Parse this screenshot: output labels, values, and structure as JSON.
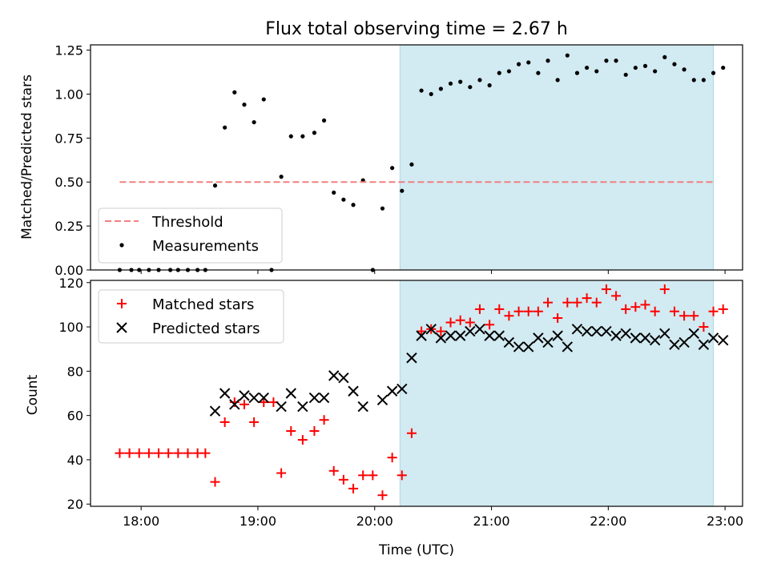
{
  "chart_data": [
    {
      "type": "scatter",
      "title": "Flux total observing time = 2.67 h",
      "ylabel": "Matched/Predicted stars",
      "xlim": [
        "17:34",
        "23:09"
      ],
      "ylim": [
        0,
        1.28
      ],
      "yticks": [
        "0.00",
        "0.25",
        "0.50",
        "0.75",
        "1.00",
        "1.25"
      ],
      "shaded_region": {
        "x_start": "20:13",
        "x_end": "22:54",
        "color": "#add8e6"
      },
      "threshold": {
        "name": "Threshold",
        "value": 0.5,
        "x_start": "17:49",
        "x_end": "22:54",
        "color": "#f08080"
      },
      "legend": {
        "placement": "lower-left",
        "entries": [
          "Threshold",
          "Measurements"
        ]
      },
      "series": [
        {
          "name": "Measurements",
          "color": "#000000",
          "points": [
            [
              "17:49",
              0.0
            ],
            [
              "17:55",
              0.0
            ],
            [
              "17:59",
              0.0
            ],
            [
              "18:04",
              0.0
            ],
            [
              "18:09",
              0.0
            ],
            [
              "18:15",
              0.0
            ],
            [
              "18:19",
              0.0
            ],
            [
              "18:24",
              0.0
            ],
            [
              "18:29",
              0.0
            ],
            [
              "18:33",
              0.0
            ],
            [
              "18:38",
              0.48
            ],
            [
              "18:43",
              0.81
            ],
            [
              "18:48",
              1.01
            ],
            [
              "18:53",
              0.94
            ],
            [
              "18:58",
              0.84
            ],
            [
              "19:03",
              0.97
            ],
            [
              "19:07",
              0.0
            ],
            [
              "19:12",
              0.53
            ],
            [
              "19:17",
              0.76
            ],
            [
              "19:23",
              0.76
            ],
            [
              "19:29",
              0.78
            ],
            [
              "19:34",
              0.85
            ],
            [
              "19:39",
              0.44
            ],
            [
              "19:44",
              0.4
            ],
            [
              "19:49",
              0.37
            ],
            [
              "19:54",
              0.51
            ],
            [
              "19:59",
              0.0
            ],
            [
              "20:04",
              0.35
            ],
            [
              "20:09",
              0.58
            ],
            [
              "20:14",
              0.45
            ],
            [
              "20:19",
              0.6
            ],
            [
              "20:24",
              1.02
            ],
            [
              "20:29",
              1.0
            ],
            [
              "20:34",
              1.03
            ],
            [
              "20:39",
              1.06
            ],
            [
              "20:44",
              1.07
            ],
            [
              "20:49",
              1.04
            ],
            [
              "20:54",
              1.08
            ],
            [
              "20:59",
              1.05
            ],
            [
              "21:04",
              1.12
            ],
            [
              "21:09",
              1.13
            ],
            [
              "21:14",
              1.17
            ],
            [
              "21:19",
              1.18
            ],
            [
              "21:24",
              1.12
            ],
            [
              "21:29",
              1.19
            ],
            [
              "21:34",
              1.08
            ],
            [
              "21:39",
              1.22
            ],
            [
              "21:44",
              1.12
            ],
            [
              "21:49",
              1.15
            ],
            [
              "21:54",
              1.13
            ],
            [
              "21:59",
              1.19
            ],
            [
              "22:04",
              1.19
            ],
            [
              "22:09",
              1.11
            ],
            [
              "22:14",
              1.15
            ],
            [
              "22:19",
              1.16
            ],
            [
              "22:24",
              1.13
            ],
            [
              "22:29",
              1.21
            ],
            [
              "22:34",
              1.17
            ],
            [
              "22:39",
              1.14
            ],
            [
              "22:44",
              1.08
            ],
            [
              "22:49",
              1.08
            ],
            [
              "22:54",
              1.12
            ],
            [
              "22:59",
              1.15
            ]
          ]
        }
      ]
    },
    {
      "type": "scatter",
      "xlabel": "Time (UTC)",
      "ylabel": "Count",
      "xlim": [
        "17:34",
        "23:09"
      ],
      "ylim": [
        19,
        121
      ],
      "xticks": [
        "18:00",
        "19:00",
        "20:00",
        "21:00",
        "22:00",
        "23:00"
      ],
      "yticks": [
        "20",
        "40",
        "60",
        "80",
        "100",
        "120"
      ],
      "shaded_region": {
        "x_start": "20:13",
        "x_end": "22:54",
        "color": "#add8e6"
      },
      "legend": {
        "placement": "upper-left",
        "entries": [
          "Matched stars",
          "Predicted stars"
        ]
      },
      "series": [
        {
          "name": "Matched stars",
          "marker": "+",
          "color": "#ff0000",
          "points": [
            [
              "17:49",
              43
            ],
            [
              "17:54",
              43
            ],
            [
              "17:59",
              43
            ],
            [
              "18:04",
              43
            ],
            [
              "18:09",
              43
            ],
            [
              "18:14",
              43
            ],
            [
              "18:19",
              43
            ],
            [
              "18:24",
              43
            ],
            [
              "18:29",
              43
            ],
            [
              "18:33",
              43
            ],
            [
              "18:38",
              30
            ],
            [
              "18:43",
              57
            ],
            [
              "18:48",
              66
            ],
            [
              "18:53",
              65
            ],
            [
              "18:58",
              57
            ],
            [
              "19:03",
              66
            ],
            [
              "19:08",
              66
            ],
            [
              "19:12",
              34
            ],
            [
              "19:17",
              53
            ],
            [
              "19:23",
              49
            ],
            [
              "19:29",
              53
            ],
            [
              "19:34",
              58
            ],
            [
              "19:39",
              35
            ],
            [
              "19:44",
              31
            ],
            [
              "19:49",
              27
            ],
            [
              "19:54",
              33
            ],
            [
              "19:59",
              33
            ],
            [
              "20:04",
              24
            ],
            [
              "20:09",
              41
            ],
            [
              "20:14",
              33
            ],
            [
              "20:19",
              52
            ],
            [
              "20:24",
              98
            ],
            [
              "20:29",
              99
            ],
            [
              "20:34",
              98
            ],
            [
              "20:39",
              102
            ],
            [
              "20:44",
              103
            ],
            [
              "20:49",
              102
            ],
            [
              "20:54",
              108
            ],
            [
              "20:59",
              101
            ],
            [
              "21:04",
              108
            ],
            [
              "21:09",
              105
            ],
            [
              "21:14",
              107
            ],
            [
              "21:19",
              107
            ],
            [
              "21:24",
              107
            ],
            [
              "21:29",
              111
            ],
            [
              "21:34",
              104
            ],
            [
              "21:39",
              111
            ],
            [
              "21:44",
              111
            ],
            [
              "21:49",
              113
            ],
            [
              "21:54",
              111
            ],
            [
              "21:59",
              117
            ],
            [
              "22:04",
              114
            ],
            [
              "22:09",
              108
            ],
            [
              "22:14",
              109
            ],
            [
              "22:19",
              110
            ],
            [
              "22:24",
              107
            ],
            [
              "22:29",
              117
            ],
            [
              "22:34",
              107
            ],
            [
              "22:39",
              105
            ],
            [
              "22:44",
              105
            ],
            [
              "22:49",
              100
            ],
            [
              "22:54",
              107
            ],
            [
              "22:59",
              108
            ]
          ]
        },
        {
          "name": "Predicted stars",
          "marker": "x",
          "color": "#000000",
          "points": [
            [
              "18:38",
              62
            ],
            [
              "18:43",
              70
            ],
            [
              "18:48",
              65
            ],
            [
              "18:53",
              69
            ],
            [
              "18:58",
              68
            ],
            [
              "19:03",
              68
            ],
            [
              "19:12",
              64
            ],
            [
              "19:17",
              70
            ],
            [
              "19:23",
              64
            ],
            [
              "19:29",
              68
            ],
            [
              "19:34",
              68
            ],
            [
              "19:39",
              78
            ],
            [
              "19:44",
              77
            ],
            [
              "19:49",
              71
            ],
            [
              "19:54",
              64
            ],
            [
              "20:04",
              67
            ],
            [
              "20:09",
              71
            ],
            [
              "20:14",
              72
            ],
            [
              "20:19",
              86
            ],
            [
              "20:24",
              96
            ],
            [
              "20:29",
              99
            ],
            [
              "20:34",
              95
            ],
            [
              "20:39",
              96
            ],
            [
              "20:44",
              96
            ],
            [
              "20:49",
              98
            ],
            [
              "20:54",
              99
            ],
            [
              "20:59",
              96
            ],
            [
              "21:04",
              96
            ],
            [
              "21:09",
              93
            ],
            [
              "21:14",
              91
            ],
            [
              "21:19",
              91
            ],
            [
              "21:24",
              95
            ],
            [
              "21:29",
              93
            ],
            [
              "21:34",
              96
            ],
            [
              "21:39",
              91
            ],
            [
              "21:44",
              99
            ],
            [
              "21:49",
              98
            ],
            [
              "21:54",
              98
            ],
            [
              "21:59",
              98
            ],
            [
              "22:04",
              96
            ],
            [
              "22:09",
              97
            ],
            [
              "22:14",
              95
            ],
            [
              "22:19",
              95
            ],
            [
              "22:24",
              94
            ],
            [
              "22:29",
              97
            ],
            [
              "22:34",
              92
            ],
            [
              "22:39",
              93
            ],
            [
              "22:44",
              97
            ],
            [
              "22:49",
              92
            ],
            [
              "22:54",
              95
            ],
            [
              "22:59",
              94
            ]
          ]
        }
      ]
    }
  ]
}
